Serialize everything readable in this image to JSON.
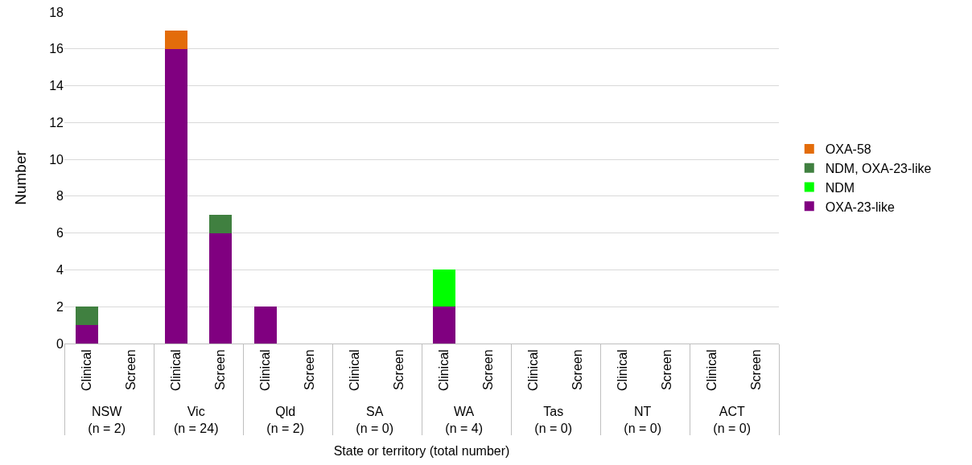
{
  "chart_data": {
    "type": "bar",
    "stacked": true,
    "xlabel": "State or territory (total number)",
    "ylabel": "Number",
    "categories": [
      "Clinical",
      "Screen",
      "Clinical",
      "Screen",
      "Clinical",
      "Screen",
      "Clinical",
      "Screen",
      "Clinical",
      "Screen",
      "Clinical",
      "Screen",
      "Clinical",
      "Screen",
      "Clinical",
      "Screen"
    ],
    "annotations": [
      "NSW\n(n = 2)",
      "Vic\n(n = 24)",
      "Qld\n(n = 2)",
      "SA\n(n = 0)",
      "WA\n(n = 4)",
      "Tas\n(n = 0)",
      "NT\n(n = 0)",
      "ACT\n(n = 0)"
    ],
    "series": [
      {
        "name": "OXA-23-like",
        "color": "#800080",
        "values": [
          1,
          0,
          16,
          6,
          2,
          0,
          0,
          0,
          2,
          0,
          0,
          0,
          0,
          0,
          0,
          0
        ]
      },
      {
        "name": "NDM",
        "color": "#00ff00",
        "values": [
          0,
          0,
          0,
          0,
          0,
          0,
          0,
          0,
          2,
          0,
          0,
          0,
          0,
          0,
          0,
          0
        ]
      },
      {
        "name": "NDM, OXA-23-like",
        "color": "#408040",
        "values": [
          1,
          0,
          0,
          1,
          0,
          0,
          0,
          0,
          0,
          0,
          0,
          0,
          0,
          0,
          0,
          0
        ]
      },
      {
        "name": "OXA-58",
        "color": "#e36c0a",
        "values": [
          0,
          0,
          1,
          0,
          0,
          0,
          0,
          0,
          0,
          0,
          0,
          0,
          0,
          0,
          0,
          0
        ]
      }
    ],
    "ylim": [
      0,
      18
    ],
    "yticks": [
      0,
      2,
      4,
      6,
      8,
      10,
      12,
      14,
      16,
      18
    ],
    "grid": "y",
    "legend": "right"
  }
}
